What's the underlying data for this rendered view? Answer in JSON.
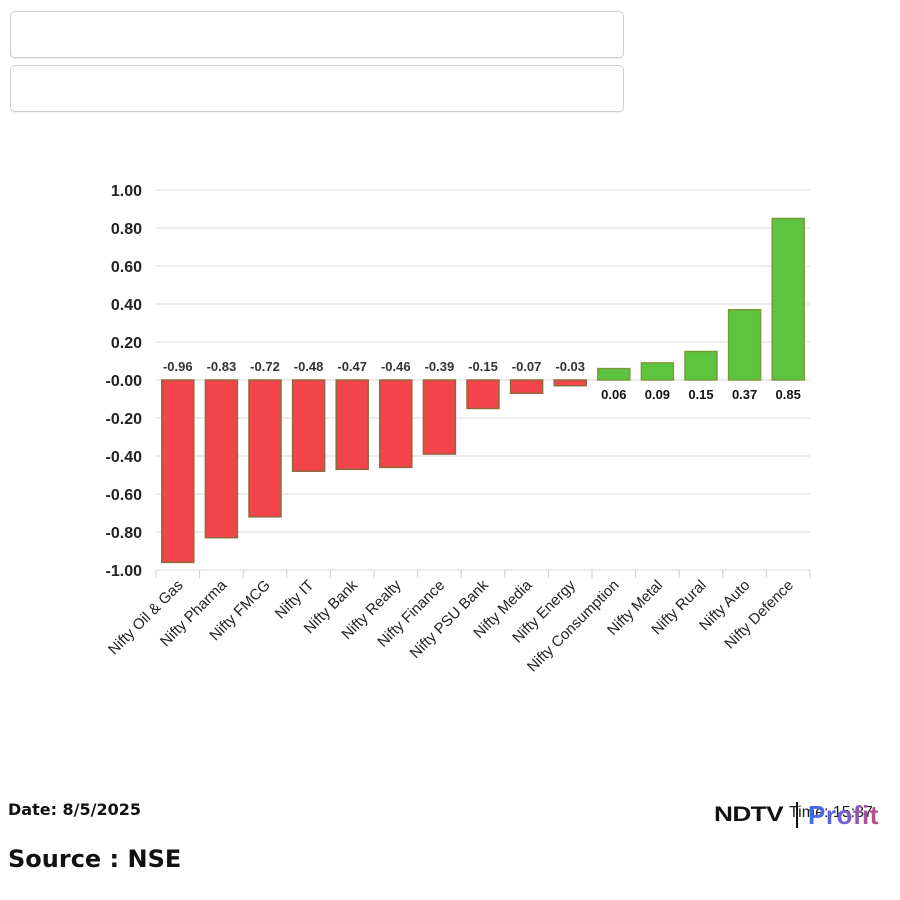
{
  "inputs": [
    {
      "value": "",
      "placeholder": ""
    },
    {
      "value": "",
      "placeholder": ""
    }
  ],
  "chart_data": {
    "type": "bar",
    "title": "",
    "xlabel": "",
    "ylabel": "",
    "ylim": [
      -1.0,
      1.0
    ],
    "yticks": [
      "1.00",
      "0.80",
      "0.60",
      "0.40",
      "0.20",
      "-0.00",
      "-0.20",
      "-0.40",
      "-0.60",
      "-0.80",
      "-1.00"
    ],
    "grid": true,
    "legend": null,
    "categories": [
      "Nifty Oil & Gas",
      "Nifty Pharma",
      "Nifty FMCG",
      "Nifty IT",
      "Nifty Bank",
      "Nifty Realty",
      "Nifty Finance",
      "Nifty PSU Bank",
      "Nifty Media",
      "Nifty Energy",
      "Nifty Consumption",
      "Nifty Metal",
      "Nifty Rural",
      "Nifty Auto",
      "Nifty Defence"
    ],
    "values": [
      -0.96,
      -0.83,
      -0.72,
      -0.48,
      -0.47,
      -0.46,
      -0.39,
      -0.15,
      -0.07,
      -0.03,
      0.06,
      0.09,
      0.15,
      0.37,
      0.85
    ],
    "data_labels": [
      "-0.96",
      "-0.83",
      "-0.72",
      "-0.48",
      "-0.47",
      "-0.46",
      "-0.39",
      "-0.15",
      "-0.07",
      "-0.03",
      "0.06",
      "0.09",
      "0.15",
      "0.37",
      "0.85"
    ],
    "colors": {
      "positive": "#5cc43f",
      "negative": "#f3434b",
      "positive_border": "#7a9a3a",
      "negative_border": "#8f6a3a",
      "grid": "#d9d9d9"
    }
  },
  "footer": {
    "date": "Date: 8/5/2025",
    "source": "Source : NSE",
    "time": "Time: 15:37",
    "logo_ndtv": "NDTV",
    "logo_profit": "Profit"
  }
}
